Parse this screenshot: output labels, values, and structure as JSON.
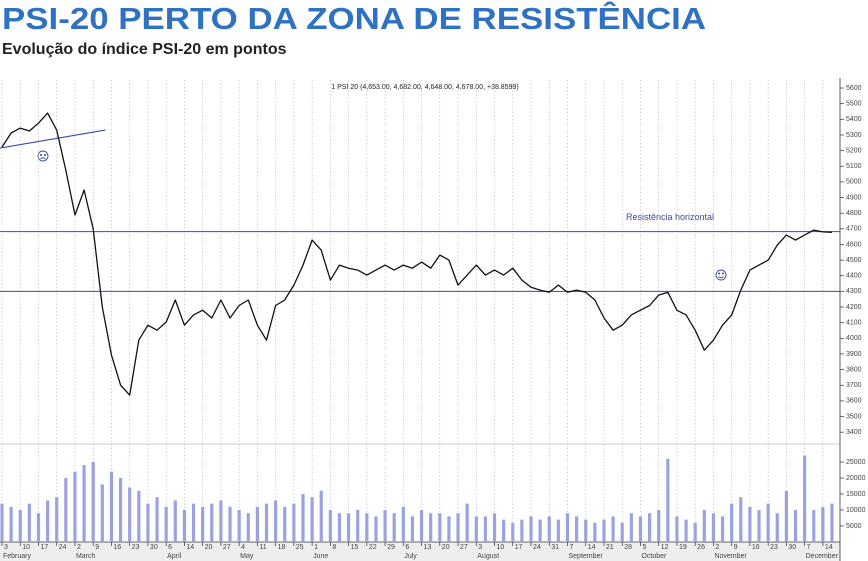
{
  "chart_data": {
    "type": "line",
    "title": "PSI-20 PERTO DA ZONA DE RESISTÊNCIA",
    "subtitle": "Evolução do índice PSI-20 em pontos",
    "chart_header": "1 PSI 20 (4,653.00, 4,682.00, 4,648.00, 4,678.00, +38.8599)",
    "categories": [
      "3",
      null,
      "10",
      null,
      "17",
      null,
      "24",
      null,
      "2",
      null,
      "9",
      null,
      "16",
      null,
      "23",
      null,
      "30",
      null,
      "6",
      null,
      "14",
      null,
      "20",
      null,
      "27",
      null,
      "4",
      null,
      "11",
      null,
      "18",
      null,
      "25",
      null,
      "1",
      null,
      "8",
      null,
      "15",
      null,
      "22",
      null,
      "29",
      null,
      "6",
      null,
      "13",
      null,
      "20",
      null,
      "27",
      null,
      "3",
      null,
      "10",
      null,
      "17",
      null,
      "24",
      null,
      "31",
      null,
      "7",
      null,
      "14",
      null,
      "21",
      null,
      "28",
      null,
      "5",
      null,
      "12",
      null,
      "19",
      null,
      "26",
      null,
      "2",
      null,
      "9",
      null,
      "16",
      null,
      "23",
      null,
      "30",
      null,
      "7",
      null,
      "14",
      null
    ],
    "months": [
      "February",
      null,
      null,
      null,
      null,
      null,
      null,
      null,
      "March",
      null,
      null,
      null,
      null,
      null,
      null,
      null,
      null,
      null,
      "April",
      null,
      null,
      null,
      null,
      null,
      null,
      null,
      "May",
      null,
      null,
      null,
      null,
      null,
      null,
      null,
      "June",
      null,
      null,
      null,
      null,
      null,
      null,
      null,
      null,
      null,
      "July",
      null,
      null,
      null,
      null,
      null,
      null,
      null,
      "August",
      null,
      null,
      null,
      null,
      null,
      null,
      null,
      null,
      null,
      "September",
      null,
      null,
      null,
      null,
      null,
      null,
      null,
      "October",
      null,
      null,
      null,
      null,
      null,
      null,
      null,
      "November",
      null,
      null,
      null,
      null,
      null,
      null,
      null,
      null,
      null,
      "December",
      null,
      null,
      null
    ],
    "series": [
      {
        "name": "PSI 20",
        "color": "#111111",
        "values": [
          5223,
          5312,
          5344,
          5325,
          5376,
          5440,
          5331,
          5075,
          4788,
          4948,
          4700,
          4200,
          3892,
          3700,
          3637,
          3988,
          4084,
          4052,
          4104,
          4245,
          4084,
          4150,
          4180,
          4130,
          4245,
          4130,
          4210,
          4245,
          4084,
          3988,
          4210,
          4245,
          4340,
          4468,
          4628,
          4564,
          4372,
          4468,
          4448,
          4436,
          4404,
          4436,
          4468,
          4436,
          4468,
          4448,
          4487,
          4448,
          4532,
          4500,
          4340,
          4404,
          4468,
          4404,
          4436,
          4404,
          4448,
          4372,
          4327,
          4308,
          4295,
          4340,
          4295,
          4308,
          4295,
          4245,
          4130,
          4052,
          4084,
          4150,
          4180,
          4210,
          4276,
          4295,
          4180,
          4150,
          4052,
          3924,
          3988,
          4084,
          4150,
          4308,
          4436,
          4468,
          4500,
          4596,
          4660,
          4628,
          4660,
          4692,
          4680,
          4678
        ]
      },
      {
        "name": "Volume",
        "type": "bar",
        "axis": "y2",
        "color": "#9aa3e0",
        "values": [
          12000,
          11000,
          10000,
          12000,
          9000,
          13000,
          14000,
          20000,
          22000,
          24000,
          25000,
          18000,
          22000,
          20000,
          17000,
          16000,
          12000,
          14000,
          11000,
          13000,
          10000,
          12000,
          11000,
          12000,
          13000,
          11000,
          10000,
          9000,
          11000,
          12000,
          13000,
          11000,
          12000,
          15000,
          14000,
          16000,
          10000,
          9000,
          9000,
          10000,
          9000,
          8000,
          10000,
          9000,
          11000,
          8000,
          10000,
          9000,
          9000,
          8000,
          9000,
          12000,
          8000,
          8000,
          9000,
          7000,
          6000,
          7000,
          8000,
          7000,
          8000,
          7000,
          9000,
          8000,
          7000,
          6000,
          7000,
          8000,
          6000,
          9000,
          8000,
          9000,
          10000,
          26000,
          8000,
          7000,
          6000,
          10000,
          9000,
          8000,
          12000,
          14000,
          11000,
          10000,
          12000,
          9000,
          16000,
          10000,
          27000,
          10000,
          11000,
          12000
        ]
      }
    ],
    "ylim": [
      3350,
      5650
    ],
    "yticks": [
      3400,
      3500,
      3600,
      3700,
      3800,
      3900,
      4000,
      4100,
      4200,
      4300,
      4400,
      4500,
      4600,
      4700,
      4800,
      4900,
      5000,
      5100,
      5200,
      5300,
      5400,
      5500,
      5600
    ],
    "y2lim": [
      0,
      30000
    ],
    "y2ticks": [
      5000,
      10000,
      15000,
      20000,
      25000
    ],
    "grid": true,
    "reference_lines": [
      {
        "value": 4682,
        "label": "Resistência horizontal",
        "color": "#3a4ca0"
      },
      {
        "value": 4300,
        "color": "#3a4ca0"
      }
    ],
    "trend_line": {
      "start_index": 0,
      "end_index": 11,
      "values": [
        5216,
        5331
      ],
      "color": "#3a4ca0"
    }
  }
}
